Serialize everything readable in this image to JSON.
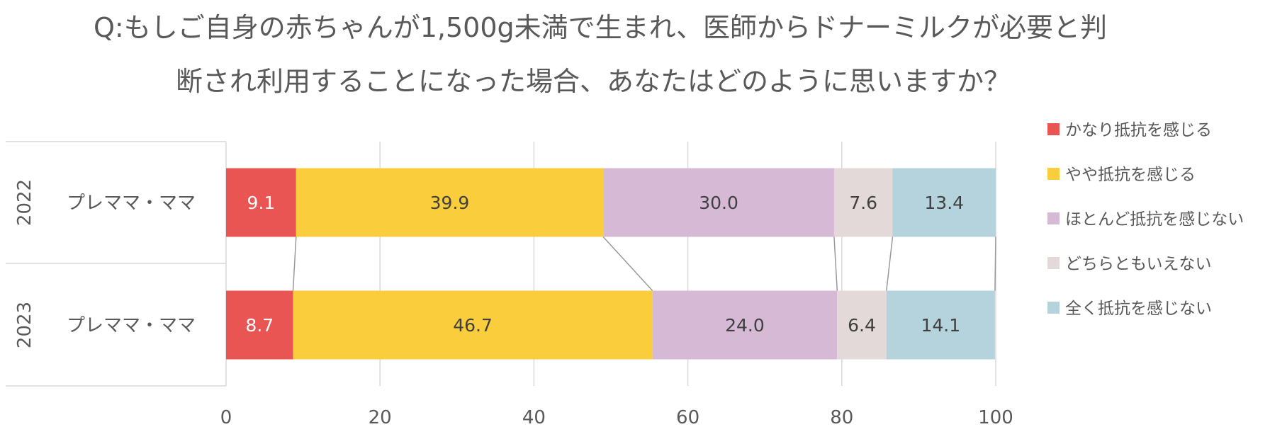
{
  "title": {
    "line1": "Q:もしご自身の赤ちゃんが1,500g未満で生まれ、医師からドナーミルクが必要と判",
    "line2": "断され利用することになった場合、あなたはどのように思いますか？"
  },
  "chart_data": {
    "type": "bar",
    "orientation": "horizontal",
    "stacked": "percent",
    "title": "Q:もしご自身の赤ちゃんが1,500g未満で生まれ、医師からドナーミルクが必要と判断され利用することになった場合、あなたはどのように思いますか？",
    "rows": [
      {
        "year": "2022",
        "group": "プレママ・ママ"
      },
      {
        "year": "2023",
        "group": "プレママ・ママ"
      }
    ],
    "series": [
      {
        "name": "かなり抵抗を感じる",
        "color": "#e85553",
        "values": [
          9.1,
          8.7
        ],
        "labels": [
          "9.1",
          "8.7"
        ]
      },
      {
        "name": "やや抵抗を感じる",
        "color": "#f9cd3b",
        "values": [
          39.9,
          46.7
        ],
        "labels": [
          "39.9",
          "46.7"
        ]
      },
      {
        "name": "ほとんど抵抗を感じない",
        "color": "#d5b9d5",
        "values": [
          30.0,
          24.0
        ],
        "labels": [
          "30.0",
          "24.0"
        ]
      },
      {
        "name": "どちらともいえない",
        "color": "#e3d9d8",
        "values": [
          7.6,
          6.4
        ],
        "labels": [
          "7.6",
          "6.4"
        ]
      },
      {
        "name": "全く抵抗を感じない",
        "color": "#b5d3dc",
        "values": [
          13.4,
          14.1
        ],
        "labels": [
          "13.4",
          "14.1"
        ]
      }
    ],
    "x_ticks": [
      "0",
      "20",
      "40",
      "60",
      "80",
      "100"
    ],
    "xlim": [
      0,
      100
    ],
    "grid": "vertical",
    "series_lines": true,
    "legend_position": "right"
  }
}
